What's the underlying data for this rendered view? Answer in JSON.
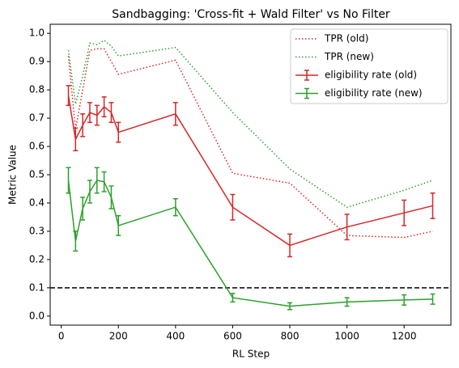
{
  "chart_data": {
    "type": "line",
    "title": "Sandbagging: 'Cross-fit + Wald Filter' vs No Filter",
    "x_label": "RL Step",
    "y_label": "Metric Value",
    "x": [
      25,
      50,
      75,
      100,
      125,
      150,
      175,
      200,
      400,
      600,
      800,
      1000,
      1200,
      1300
    ],
    "series": [
      {
        "name": "TPR (old)",
        "color": "#d62728",
        "style": "dotted",
        "values": [
          0.92,
          0.66,
          0.8,
          0.94,
          0.945,
          0.945,
          0.9,
          0.855,
          0.905,
          0.505,
          0.47,
          0.285,
          0.278,
          0.3
        ]
      },
      {
        "name": "TPR (new)",
        "color": "#2ca02c",
        "style": "dotted",
        "values": [
          0.94,
          0.75,
          0.85,
          0.965,
          0.96,
          0.975,
          0.955,
          0.92,
          0.95,
          0.72,
          0.52,
          0.385,
          0.445,
          0.48
        ]
      },
      {
        "name": "eligibility rate (old)",
        "color": "#d62728",
        "style": "solid",
        "values": [
          0.78,
          0.625,
          0.675,
          0.72,
          0.71,
          0.74,
          0.72,
          0.65,
          0.715,
          0.385,
          0.25,
          0.315,
          0.365,
          0.39
        ],
        "errors": [
          0.035,
          0.04,
          0.04,
          0.035,
          0.035,
          0.035,
          0.035,
          0.035,
          0.04,
          0.045,
          0.04,
          0.045,
          0.045,
          0.045
        ]
      },
      {
        "name": "eligibility rate (new)",
        "color": "#2ca02c",
        "style": "solid",
        "values": [
          0.48,
          0.265,
          0.38,
          0.44,
          0.48,
          0.475,
          0.42,
          0.32,
          0.385,
          0.065,
          0.035,
          0.05,
          0.057,
          0.06
        ],
        "errors": [
          0.045,
          0.035,
          0.04,
          0.04,
          0.045,
          0.035,
          0.04,
          0.035,
          0.03,
          0.015,
          0.012,
          0.015,
          0.018,
          0.018
        ]
      }
    ],
    "hline": {
      "value": 0.1,
      "color": "#000000"
    },
    "xlim": [
      -38.75,
      1363.75
    ],
    "ylim": [
      -0.032,
      1.032
    ],
    "xticks": [
      0,
      200,
      400,
      600,
      800,
      1000,
      1200
    ],
    "yticks": [
      {
        "value": 0,
        "label": "0.0"
      },
      0.1,
      0.2,
      0.3,
      0.4,
      0.5,
      0.6,
      0.7,
      0.8,
      0.9,
      {
        "value": 1,
        "label": "1.0"
      }
    ],
    "legend": "upper right",
    "grid": false
  }
}
